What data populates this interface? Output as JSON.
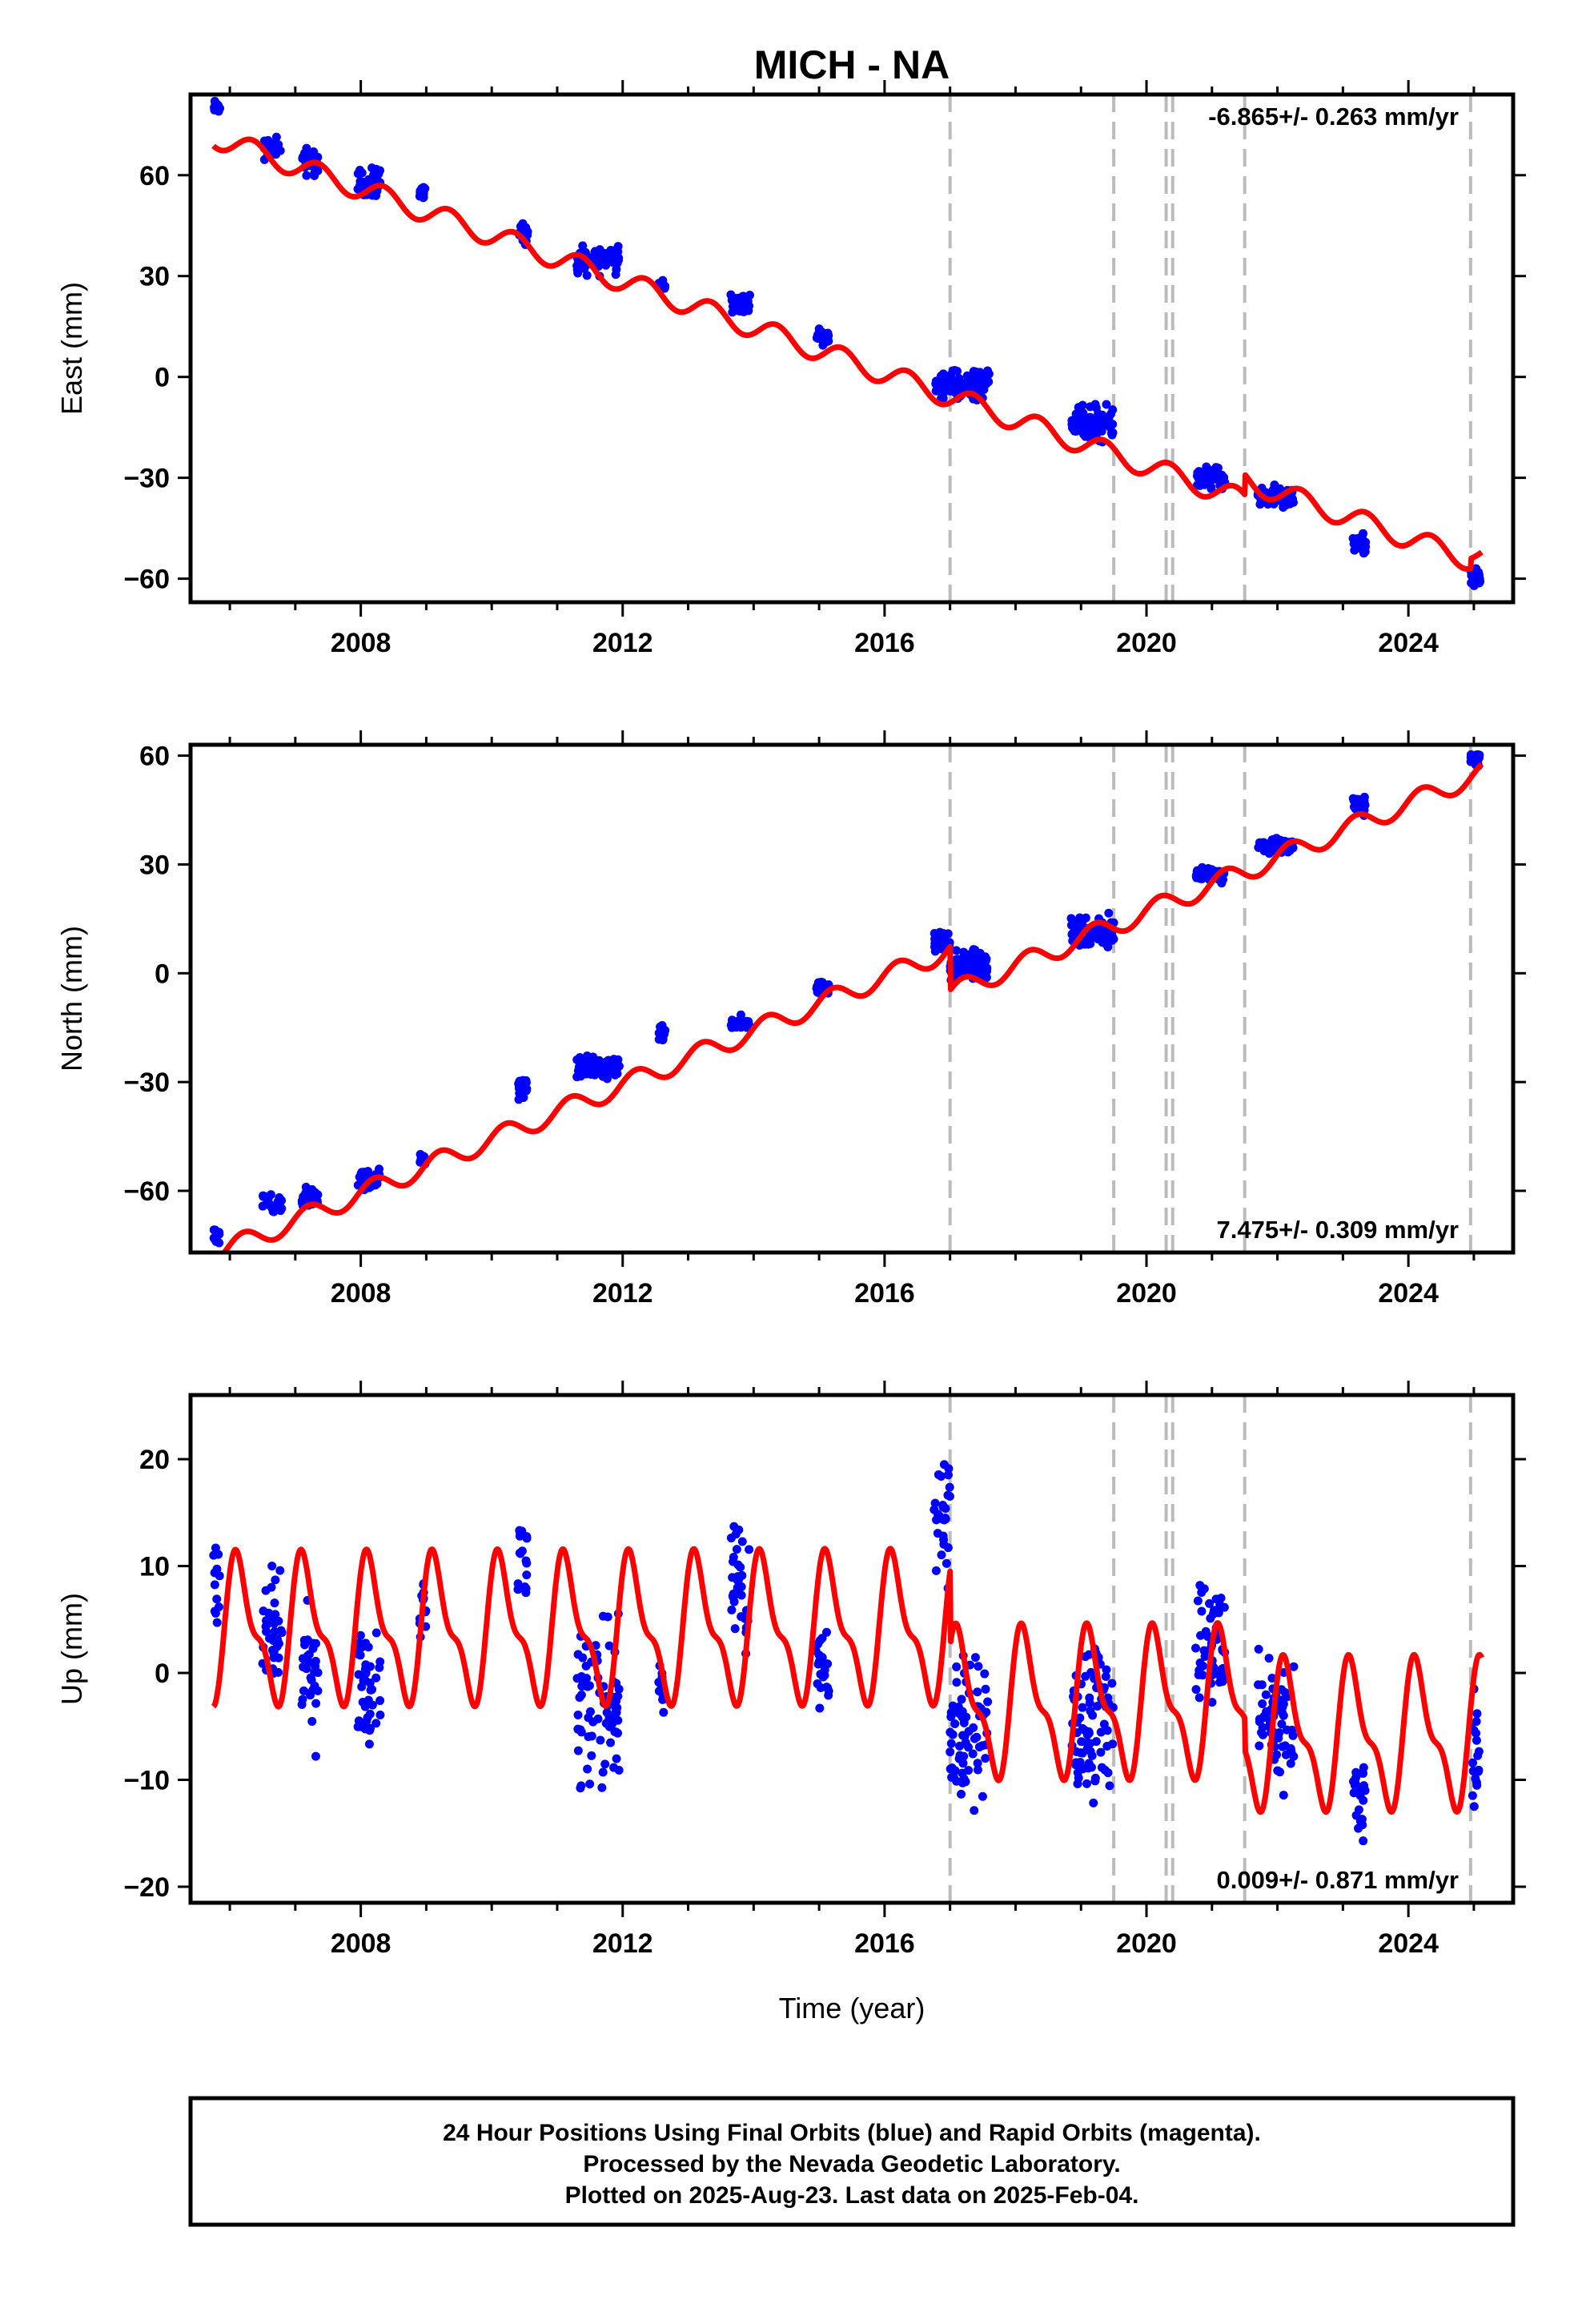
{
  "title": "MICH - NA",
  "xlabel": "Time (year)",
  "caption": [
    "24 Hour Positions Using Final Orbits (blue) and Rapid Orbits (magenta).",
    "Processed by the Nevada Geodetic Laboratory.",
    "Plotted on 2025-Aug-23. Last data on 2025-Feb-04."
  ],
  "colors": {
    "data": "#0000ff",
    "model": "#ff0000",
    "events": "#bbbbbb",
    "axes": "#000000"
  },
  "chart_data": [
    {
      "type": "scatter",
      "ylabel": "East (mm)",
      "rate_label": "-6.865+/- 0.263 mm/yr",
      "rate_position": "top-right",
      "xlim": [
        2005.4,
        2025.6
      ],
      "ylim": [
        -67,
        84
      ],
      "x_ticks": [
        2008,
        2012,
        2016,
        2020,
        2024
      ],
      "y_ticks": [
        -60,
        -30,
        0,
        30,
        60
      ],
      "event_lines": [
        2017.0,
        2019.5,
        2020.3,
        2020.4,
        2021.5,
        2024.95
      ],
      "series": [
        {
          "role": "daily positions (blue)",
          "campaigns": [
            {
              "start": 2005.75,
              "end": 2005.85,
              "level": 80,
              "spread": 2
            },
            {
              "start": 2006.5,
              "end": 2006.8,
              "level": 68,
              "spread": 3
            },
            {
              "start": 2007.1,
              "end": 2007.35,
              "level": 64,
              "spread": 4
            },
            {
              "start": 2007.95,
              "end": 2008.3,
              "level": 58,
              "spread": 4
            },
            {
              "start": 2008.9,
              "end": 2009.0,
              "level": 55,
              "spread": 2
            },
            {
              "start": 2010.4,
              "end": 2010.55,
              "level": 42,
              "spread": 3
            },
            {
              "start": 2011.3,
              "end": 2011.95,
              "level": 35,
              "spread": 4
            },
            {
              "start": 2012.55,
              "end": 2012.65,
              "level": 27,
              "spread": 2
            },
            {
              "start": 2013.65,
              "end": 2013.95,
              "level": 22,
              "spread": 3
            },
            {
              "start": 2014.95,
              "end": 2015.15,
              "level": 12,
              "spread": 2
            },
            {
              "start": 2016.75,
              "end": 2017.6,
              "level": -2,
              "spread": 4
            },
            {
              "start": 2018.85,
              "end": 2019.5,
              "level": -14,
              "spread": 5
            },
            {
              "start": 2020.75,
              "end": 2021.2,
              "level": -30,
              "spread": 3
            },
            {
              "start": 2021.7,
              "end": 2022.25,
              "level": -36,
              "spread": 3
            },
            {
              "start": 2023.15,
              "end": 2023.35,
              "level": -50,
              "spread": 3
            },
            {
              "start": 2024.95,
              "end": 2025.1,
              "level": -60,
              "spread": 3
            }
          ]
        },
        {
          "role": "model fit (red)",
          "rate": -6.865,
          "value_at_2016": 1,
          "annual_amplitude": 3.2,
          "annual_phase": -0.6,
          "offsets": [
            {
              "epoch": 2021.5,
              "step": 6
            },
            {
              "epoch": 2024.95,
              "step": 3
            }
          ]
        }
      ]
    },
    {
      "type": "scatter",
      "ylabel": "North (mm)",
      "rate_label": "7.475+/- 0.309 mm/yr",
      "rate_position": "bottom-right",
      "xlim": [
        2005.4,
        2025.6
      ],
      "ylim": [
        -77,
        63
      ],
      "x_ticks": [
        2008,
        2012,
        2016,
        2020,
        2024
      ],
      "y_ticks": [
        -60,
        -30,
        0,
        30,
        60
      ],
      "event_lines": [
        2017.0,
        2019.5,
        2020.3,
        2020.4,
        2021.5,
        2024.95
      ],
      "series": [
        {
          "role": "daily positions (blue)",
          "campaigns": [
            {
              "start": 2005.75,
              "end": 2005.85,
              "level": -73,
              "spread": 2
            },
            {
              "start": 2006.5,
              "end": 2006.8,
              "level": -64,
              "spread": 3
            },
            {
              "start": 2007.1,
              "end": 2007.35,
              "level": -62,
              "spread": 3
            },
            {
              "start": 2007.95,
              "end": 2008.3,
              "level": -57,
              "spread": 3
            },
            {
              "start": 2008.9,
              "end": 2009.0,
              "level": -51,
              "spread": 2
            },
            {
              "start": 2010.4,
              "end": 2010.55,
              "level": -32,
              "spread": 3
            },
            {
              "start": 2011.3,
              "end": 2011.95,
              "level": -26,
              "spread": 3
            },
            {
              "start": 2012.55,
              "end": 2012.65,
              "level": -17,
              "spread": 2
            },
            {
              "start": 2013.65,
              "end": 2013.95,
              "level": -14,
              "spread": 2
            },
            {
              "start": 2014.95,
              "end": 2015.15,
              "level": -4,
              "spread": 2
            },
            {
              "start": 2016.75,
              "end": 2017.0,
              "level": 9,
              "spread": 3
            },
            {
              "start": 2017.0,
              "end": 2017.6,
              "level": 2,
              "spread": 4
            },
            {
              "start": 2018.85,
              "end": 2019.5,
              "level": 12,
              "spread": 5
            },
            {
              "start": 2020.75,
              "end": 2021.2,
              "level": 27,
              "spread": 2
            },
            {
              "start": 2021.7,
              "end": 2022.25,
              "level": 35,
              "spread": 2
            },
            {
              "start": 2023.15,
              "end": 2023.35,
              "level": 47,
              "spread": 3
            },
            {
              "start": 2024.95,
              "end": 2025.1,
              "level": 59,
              "spread": 2
            }
          ]
        },
        {
          "role": "model fit (red)",
          "rate": 7.475,
          "value_at_2016": -1,
          "annual_amplitude": 2.8,
          "annual_phase": 0.3,
          "offsets": [
            {
              "epoch": 2017.0,
              "step": -12
            }
          ]
        }
      ]
    },
    {
      "type": "scatter",
      "ylabel": "Up (mm)",
      "rate_label": "0.009+/- 0.871 mm/yr",
      "rate_position": "bottom-right",
      "xlim": [
        2005.4,
        2025.6
      ],
      "ylim": [
        -21.5,
        26
      ],
      "x_ticks": [
        2008,
        2012,
        2016,
        2020,
        2024
      ],
      "y_ticks": [
        -20,
        -10,
        0,
        10,
        20
      ],
      "event_lines": [
        2017.0,
        2019.5,
        2020.3,
        2020.4,
        2021.5,
        2024.95
      ],
      "series": [
        {
          "role": "daily positions (blue)",
          "campaigns": [
            {
              "start": 2005.75,
              "end": 2005.85,
              "level": 8,
              "spread": 5
            },
            {
              "start": 2006.5,
              "end": 2006.8,
              "level": 4,
              "spread": 5
            },
            {
              "start": 2007.1,
              "end": 2007.35,
              "level": 0,
              "spread": 6
            },
            {
              "start": 2007.95,
              "end": 2008.3,
              "level": -1,
              "spread": 6
            },
            {
              "start": 2008.9,
              "end": 2009.0,
              "level": 6,
              "spread": 3
            },
            {
              "start": 2010.4,
              "end": 2010.55,
              "level": 11,
              "spread": 5
            },
            {
              "start": 2011.3,
              "end": 2011.95,
              "level": -3,
              "spread": 7
            },
            {
              "start": 2012.55,
              "end": 2012.65,
              "level": -1,
              "spread": 3
            },
            {
              "start": 2013.65,
              "end": 2013.95,
              "level": 7,
              "spread": 6
            },
            {
              "start": 2014.95,
              "end": 2015.15,
              "level": 1,
              "spread": 4
            },
            {
              "start": 2016.75,
              "end": 2017.0,
              "level": 14,
              "spread": 7
            },
            {
              "start": 2017.0,
              "end": 2017.6,
              "level": -5,
              "spread": 6
            },
            {
              "start": 2018.85,
              "end": 2019.5,
              "level": -4,
              "spread": 8
            },
            {
              "start": 2020.75,
              "end": 2021.2,
              "level": 3,
              "spread": 5
            },
            {
              "start": 2021.7,
              "end": 2022.25,
              "level": -5,
              "spread": 6
            },
            {
              "start": 2023.15,
              "end": 2023.35,
              "level": -12,
              "spread": 4
            },
            {
              "start": 2024.95,
              "end": 2025.1,
              "level": -8,
              "spread": 5
            }
          ]
        },
        {
          "role": "model fit (red)",
          "rate": 0.009,
          "value_at_2016": 4,
          "annual_amplitude": 6,
          "annual_phase": 0.6,
          "semiannual_amplitude": 2.5,
          "offsets": [
            {
              "epoch": 2017.0,
              "step": -7
            },
            {
              "epoch": 2021.5,
              "step": -3
            }
          ]
        }
      ]
    }
  ]
}
